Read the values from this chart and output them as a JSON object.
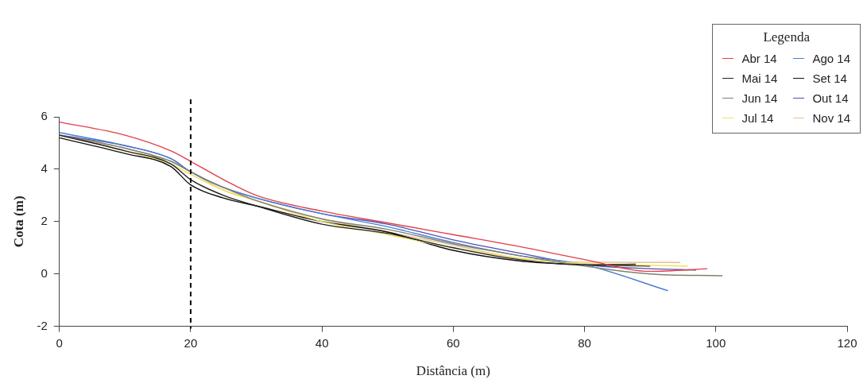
{
  "chart_data": {
    "type": "line",
    "xlabel": "Distância (m)",
    "ylabel": "Cota (m)",
    "legend_title": "Legenda",
    "legend": "top right",
    "grid": false,
    "marker": "none",
    "line_style": "solid",
    "xlim": [
      0,
      120
    ],
    "xticks": [
      0,
      20,
      40,
      60,
      80,
      100,
      120
    ],
    "ylim": [
      -2,
      6
    ],
    "yticks": [
      -2,
      0,
      2,
      4,
      6
    ],
    "ref_lines": [
      {
        "axis": "x",
        "value": 20,
        "color": "#000000",
        "line_style": "dashed"
      }
    ],
    "series": [
      {
        "name": "Abr 14",
        "color": "#e0404a",
        "x": [
          0,
          10,
          17,
          20,
          25,
          30,
          40,
          50,
          60,
          70,
          80,
          90,
          98.7
        ],
        "values": [
          5.8,
          5.3,
          4.7,
          4.3,
          3.6,
          3.0,
          2.4,
          1.95,
          1.5,
          1.05,
          0.55,
          0.1,
          0.2
        ]
      },
      {
        "name": "Mai 14",
        "color": "#222222",
        "x": [
          0,
          10,
          17,
          20,
          25,
          30,
          40,
          50,
          60,
          70,
          80,
          87.8
        ],
        "values": [
          5.3,
          4.7,
          4.2,
          3.6,
          3.0,
          2.6,
          1.9,
          1.55,
          1.0,
          0.55,
          0.35,
          0.37
        ]
      },
      {
        "name": "Jun 14",
        "color": "#808070",
        "x": [
          0,
          10,
          17,
          20,
          25,
          30,
          40,
          50,
          60,
          70,
          80,
          90,
          101
        ],
        "values": [
          5.3,
          4.8,
          4.3,
          3.9,
          3.3,
          2.8,
          2.1,
          1.7,
          1.15,
          0.7,
          0.3,
          0.0,
          -0.07
        ]
      },
      {
        "name": "Jul 14",
        "color": "#f0e060",
        "x": [
          0,
          10,
          17,
          20,
          25,
          30,
          40,
          50,
          60,
          70,
          80,
          95.7
        ],
        "values": [
          5.3,
          4.7,
          4.2,
          3.8,
          3.2,
          2.8,
          2.0,
          1.5,
          1.0,
          0.6,
          0.4,
          0.3
        ]
      },
      {
        "name": "Ago 14",
        "color": "#4a7fd0",
        "x": [
          0,
          10,
          17,
          20,
          25,
          30,
          40,
          50,
          60,
          70,
          80,
          92.7
        ],
        "values": [
          5.4,
          4.9,
          4.4,
          3.9,
          3.3,
          2.9,
          2.3,
          1.8,
          1.2,
          0.7,
          0.35,
          -0.64
        ]
      },
      {
        "name": "Set 14",
        "color": "#111111",
        "x": [
          0,
          10,
          17,
          20,
          25,
          30,
          40,
          50,
          60,
          70,
          80,
          90
        ],
        "values": [
          5.2,
          4.6,
          4.1,
          3.4,
          2.9,
          2.6,
          2.0,
          1.6,
          0.9,
          0.5,
          0.35,
          0.3
        ]
      },
      {
        "name": "Out 14",
        "color": "#5050b0",
        "x": [
          0,
          10,
          17,
          20,
          25,
          30,
          40,
          50,
          60,
          70,
          80,
          90,
          97
        ],
        "values": [
          5.3,
          4.9,
          4.4,
          3.9,
          3.3,
          2.9,
          2.3,
          1.9,
          1.3,
          0.8,
          0.35,
          0.2,
          0.15
        ]
      },
      {
        "name": "Nov 14",
        "color": "#e8c090",
        "x": [
          0,
          10,
          17,
          20,
          25,
          30,
          40,
          50,
          60,
          70,
          80,
          94.6
        ],
        "values": [
          5.3,
          4.8,
          4.3,
          3.9,
          3.2,
          2.8,
          2.1,
          1.6,
          1.1,
          0.6,
          0.45,
          0.44
        ]
      }
    ]
  }
}
